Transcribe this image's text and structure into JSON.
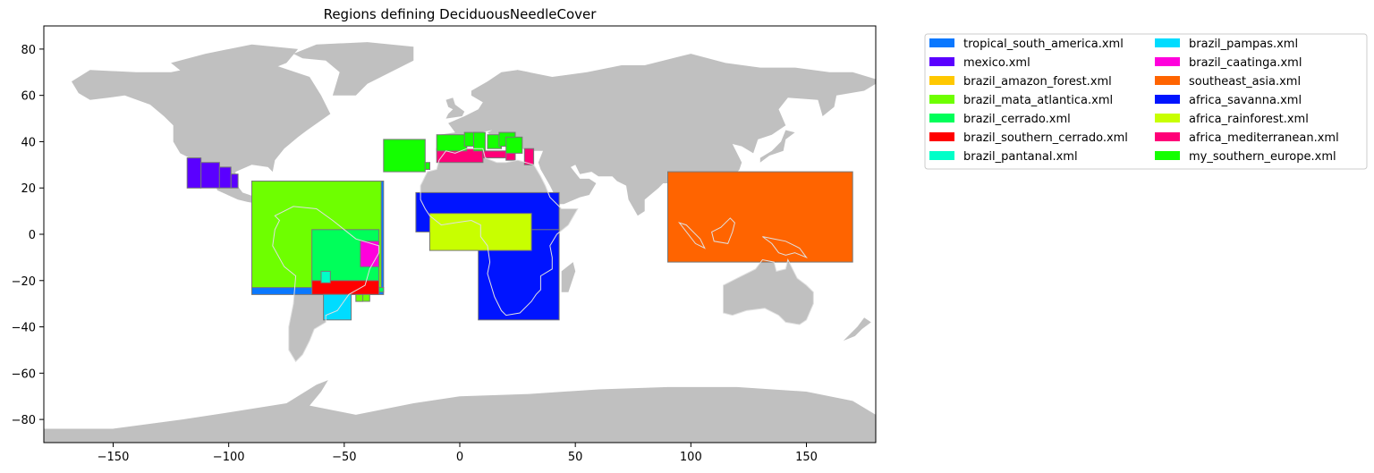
{
  "chart_data": {
    "type": "map",
    "title": "Regions defining DeciduousNeedleCover",
    "xlabel": "",
    "ylabel": "",
    "xlim": [
      -180,
      180
    ],
    "ylim": [
      -90,
      90
    ],
    "xticks": [
      -150,
      -100,
      -50,
      0,
      50,
      100,
      150
    ],
    "yticks": [
      -80,
      -60,
      -40,
      -20,
      0,
      20,
      40,
      60,
      80
    ],
    "land_color": "#c0c0c0",
    "border_color": "#e0e0e0",
    "legend_placement": "outside-upper-right",
    "legend_columns": 2,
    "series": [
      {
        "name": "tropical_south_america.xml",
        "color": "#0a78ff",
        "rects": [
          [
            -90,
            -26,
            -33,
            23
          ]
        ]
      },
      {
        "name": "mexico.xml",
        "color": "#5a00ff",
        "rects": [
          [
            -118,
            20,
            -112,
            33
          ],
          [
            -112,
            20,
            -104,
            31
          ],
          [
            -104,
            20,
            -99,
            29
          ],
          [
            -99,
            20,
            -96,
            26
          ]
        ]
      },
      {
        "name": "brazil_amazon_forest.xml",
        "color": "#ffc800",
        "rects": []
      },
      {
        "name": "brazil_mata_atlantica.xml",
        "color": "#6eff00",
        "rects": [
          [
            -90,
            -23,
            -34,
            23
          ],
          [
            -42,
            -29,
            -39,
            -23
          ],
          [
            -45,
            -29,
            -42,
            -26
          ]
        ]
      },
      {
        "name": "brazil_cerrado.xml",
        "color": "#00ff5a",
        "rects": [
          [
            -64,
            -21,
            -35,
            2
          ],
          [
            -35,
            -25,
            -33,
            -23
          ]
        ]
      },
      {
        "name": "brazil_southern_cerrado.xml",
        "color": "#ff0000",
        "rects": [
          [
            -64,
            -26,
            -35,
            -20
          ]
        ]
      },
      {
        "name": "brazil_pantanal.xml",
        "color": "#00ffc8",
        "rects": [
          [
            -60,
            -21,
            -56,
            -16
          ]
        ]
      },
      {
        "name": "brazil_pampas.xml",
        "color": "#00dcff",
        "rects": [
          [
            -59,
            -37,
            -47,
            -26
          ]
        ]
      },
      {
        "name": "brazil_caatinga.xml",
        "color": "#ff00dc",
        "rects": [
          [
            -43,
            -14,
            -35,
            -3
          ]
        ]
      },
      {
        "name": "southeast_asia.xml",
        "color": "#ff6400",
        "rects": [
          [
            90,
            -12,
            170,
            27
          ]
        ]
      },
      {
        "name": "africa_savanna.xml",
        "color": "#0014ff",
        "rects": [
          [
            -19,
            1,
            43,
            18
          ],
          [
            8,
            -37,
            43,
            2
          ]
        ]
      },
      {
        "name": "africa_rainforest.xml",
        "color": "#c8ff00",
        "rects": [
          [
            -13,
            -7,
            31,
            9
          ]
        ]
      },
      {
        "name": "africa_mediterranean.xml",
        "color": "#ff0078",
        "rects": [
          [
            -10,
            31,
            10,
            37
          ],
          [
            10,
            33,
            22,
            36
          ],
          [
            28,
            30,
            32,
            37
          ],
          [
            20,
            32,
            24,
            36
          ]
        ]
      },
      {
        "name": "my_southern_europe.xml",
        "color": "#14ff00",
        "rects": [
          [
            -33,
            27,
            -15,
            41
          ],
          [
            -15,
            28,
            -13,
            31
          ],
          [
            -10,
            36,
            3,
            43
          ],
          [
            2,
            38,
            10,
            44
          ],
          [
            6,
            36,
            11,
            44
          ],
          [
            12,
            37,
            18,
            43
          ],
          [
            17,
            38,
            24,
            44
          ],
          [
            20,
            35,
            27,
            42
          ]
        ]
      }
    ]
  }
}
